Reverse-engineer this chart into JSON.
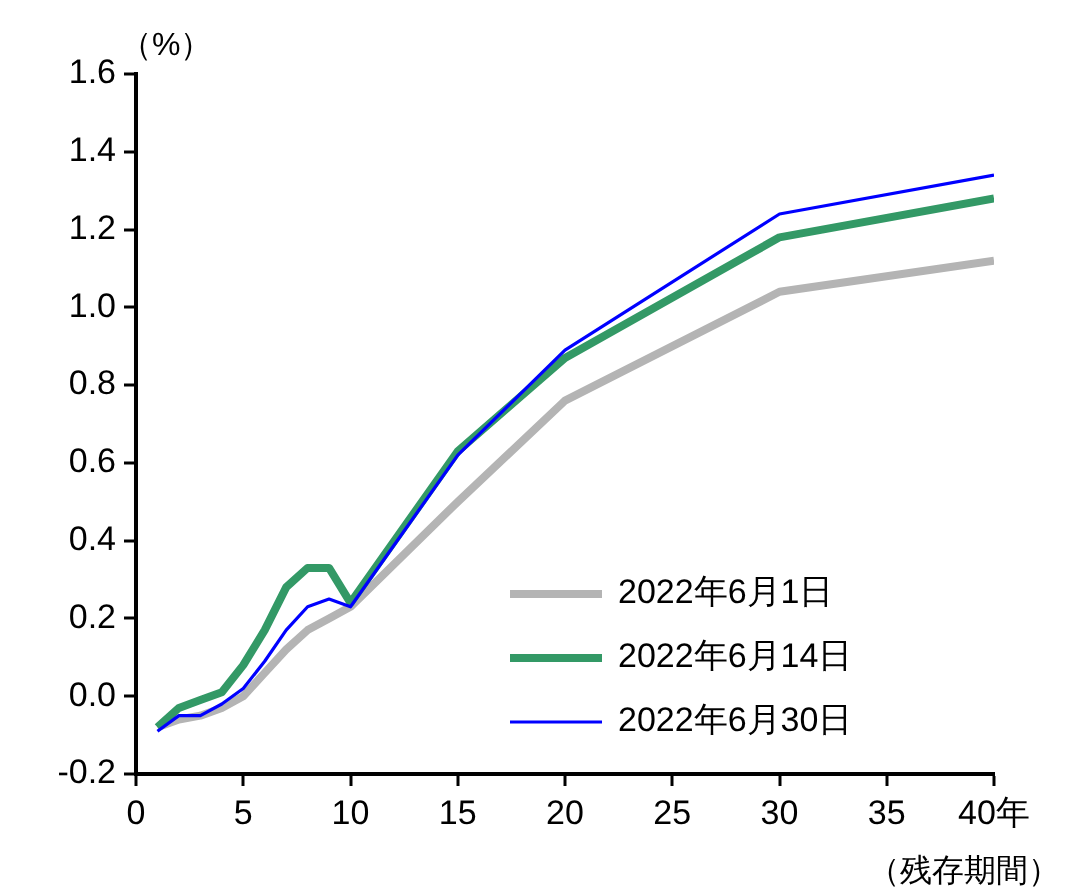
{
  "chart_data": {
    "type": "line",
    "ylabel": "（%）",
    "xlabel": "（残存期間）",
    "x": [
      1,
      2,
      3,
      4,
      5,
      6,
      7,
      8,
      9,
      10,
      15,
      20,
      30,
      40
    ],
    "xlim": [
      0,
      40
    ],
    "xticks": [
      0,
      5,
      10,
      15,
      20,
      25,
      30,
      35,
      {
        "value": 40,
        "label": "40年"
      }
    ],
    "ylim": [
      -0.2,
      1.6
    ],
    "yticks": [
      -0.2,
      {
        "value": 0,
        "label": "0.0"
      },
      0.2,
      0.4,
      0.6,
      0.8,
      {
        "value": 1,
        "label": "1.0"
      },
      1.2,
      1.4,
      1.6
    ],
    "grid": false,
    "legend": "bottom right",
    "marker": "none",
    "line_style": "solid",
    "series": [
      {
        "name": "2022年6月1日",
        "color": "#b4b4b4",
        "values": [
          -0.08,
          -0.06,
          -0.05,
          -0.03,
          0.0,
          0.06,
          0.12,
          0.17,
          0.2,
          0.23,
          0.5,
          0.76,
          1.04,
          1.12
        ]
      },
      {
        "name": "2022年6月14日",
        "color": "#339966",
        "values": [
          -0.08,
          -0.03,
          -0.01,
          0.01,
          0.08,
          0.17,
          0.28,
          0.33,
          0.33,
          0.24,
          0.63,
          0.87,
          1.18,
          1.28
        ]
      },
      {
        "name": "2022年6月30日",
        "color": "#0000ff",
        "values": [
          -0.09,
          -0.05,
          -0.05,
          -0.02,
          0.02,
          0.09,
          0.17,
          0.23,
          0.25,
          0.23,
          0.62,
          0.89,
          1.24,
          1.34
        ]
      }
    ]
  }
}
